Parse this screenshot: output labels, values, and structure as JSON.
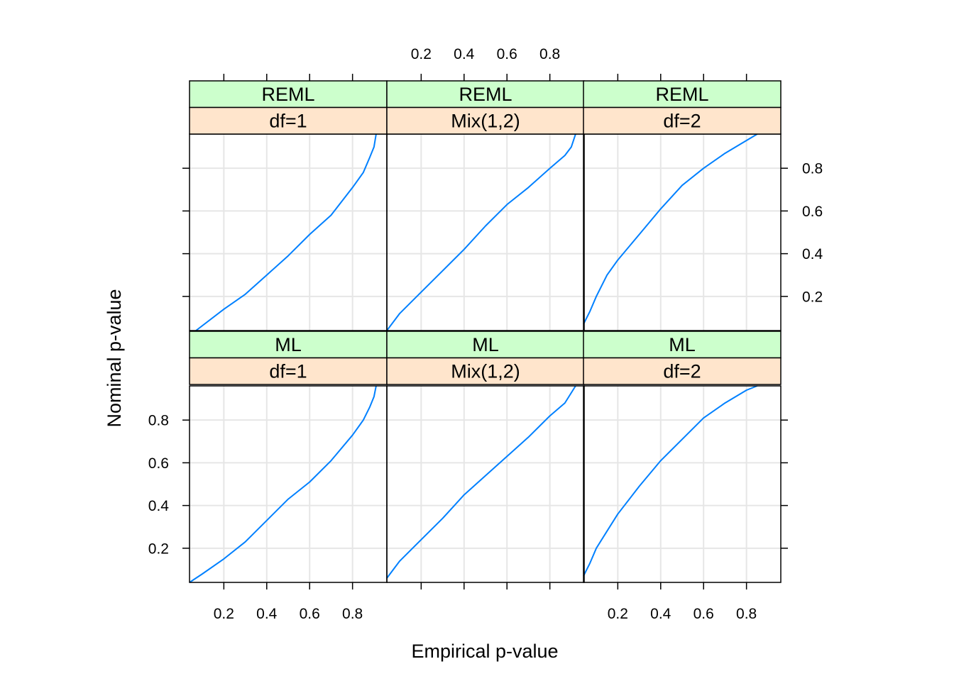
{
  "chart_data": {
    "type": "line",
    "layout": "lattice 3 columns x 2 rows",
    "xlabel": "Empirical p-value",
    "ylabel": "Nominal p-value",
    "xlim": [
      0.04,
      0.96
    ],
    "ylim": [
      0.04,
      0.96
    ],
    "xticks": [
      0.2,
      0.4,
      0.6,
      0.8
    ],
    "yticks": [
      0.2,
      0.4,
      0.6,
      0.8
    ],
    "xtick_labels": [
      "0.2",
      "0.4",
      "0.6",
      "0.8"
    ],
    "ytick_labels": [
      "0.2",
      "0.4",
      "0.6",
      "0.8"
    ],
    "grid": true,
    "line_color": "#0080ff",
    "strip_colors": {
      "outer": "#ccffcc",
      "inner": "#ffe5cc"
    },
    "panels": [
      {
        "row": 0,
        "col": 0,
        "method": "REML",
        "df": "df=1",
        "x": [
          0.07,
          0.2,
          0.3,
          0.4,
          0.5,
          0.6,
          0.7,
          0.8,
          0.85,
          0.88,
          0.9,
          0.91
        ],
        "y": [
          0.04,
          0.14,
          0.21,
          0.3,
          0.39,
          0.49,
          0.58,
          0.71,
          0.78,
          0.85,
          0.9,
          0.96
        ]
      },
      {
        "row": 0,
        "col": 1,
        "method": "REML",
        "df": "Mix(1,2)",
        "x": [
          0.04,
          0.1,
          0.2,
          0.3,
          0.4,
          0.5,
          0.6,
          0.7,
          0.8,
          0.87,
          0.9,
          0.92
        ],
        "y": [
          0.04,
          0.12,
          0.22,
          0.32,
          0.42,
          0.53,
          0.63,
          0.71,
          0.8,
          0.86,
          0.9,
          0.96
        ]
      },
      {
        "row": 0,
        "col": 2,
        "method": "REML",
        "df": "df=2",
        "x": [
          0.04,
          0.07,
          0.1,
          0.15,
          0.2,
          0.3,
          0.4,
          0.5,
          0.6,
          0.7,
          0.8,
          0.85
        ],
        "y": [
          0.07,
          0.13,
          0.2,
          0.3,
          0.37,
          0.49,
          0.61,
          0.72,
          0.8,
          0.87,
          0.93,
          0.96
        ]
      },
      {
        "row": 1,
        "col": 0,
        "method": "ML",
        "df": "df=1",
        "x": [
          0.04,
          0.1,
          0.2,
          0.3,
          0.4,
          0.5,
          0.6,
          0.7,
          0.8,
          0.85,
          0.88,
          0.9,
          0.91
        ],
        "y": [
          0.04,
          0.08,
          0.15,
          0.23,
          0.33,
          0.43,
          0.51,
          0.61,
          0.73,
          0.8,
          0.86,
          0.91,
          0.96
        ]
      },
      {
        "row": 1,
        "col": 1,
        "method": "ML",
        "df": "Mix(1,2)",
        "x": [
          0.04,
          0.1,
          0.2,
          0.3,
          0.4,
          0.5,
          0.6,
          0.7,
          0.8,
          0.87,
          0.92
        ],
        "y": [
          0.06,
          0.14,
          0.24,
          0.34,
          0.45,
          0.54,
          0.63,
          0.72,
          0.82,
          0.88,
          0.96
        ]
      },
      {
        "row": 1,
        "col": 2,
        "method": "ML",
        "df": "df=2",
        "x": [
          0.04,
          0.07,
          0.1,
          0.15,
          0.2,
          0.3,
          0.4,
          0.5,
          0.6,
          0.7,
          0.8,
          0.85
        ],
        "y": [
          0.07,
          0.13,
          0.2,
          0.28,
          0.36,
          0.49,
          0.61,
          0.71,
          0.81,
          0.88,
          0.94,
          0.96
        ]
      }
    ]
  }
}
